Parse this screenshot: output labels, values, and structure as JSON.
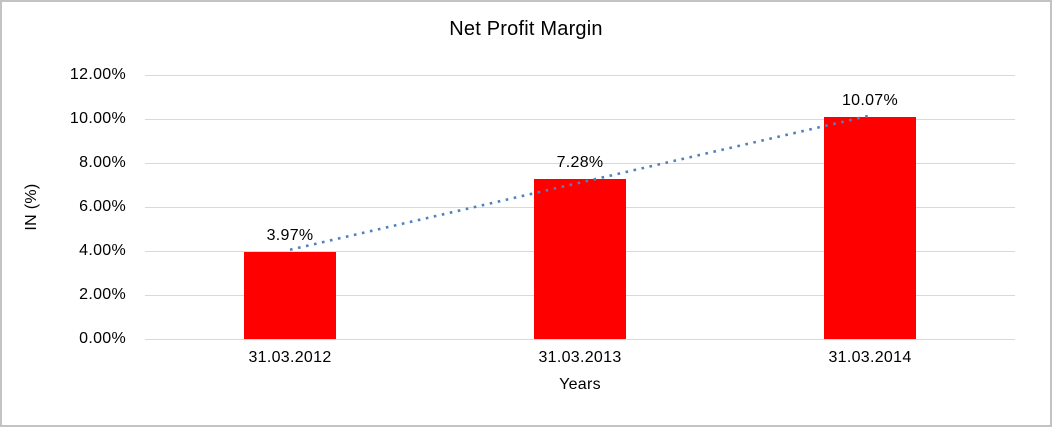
{
  "chart_data": {
    "type": "bar",
    "title": "Net Profit Margin",
    "xlabel": "Years",
    "ylabel": "IN (%)",
    "categories": [
      "31.03.2012",
      "31.03.2013",
      "31.03.2014"
    ],
    "values": [
      3.97,
      7.28,
      10.07
    ],
    "data_labels": [
      "3.97%",
      "7.28%",
      "10.07%"
    ],
    "ylim": [
      0,
      12
    ],
    "ytick_labels": [
      "0.00%",
      "2.00%",
      "4.00%",
      "6.00%",
      "8.00%",
      "10.00%",
      "12.00%"
    ],
    "grid": "horizontal",
    "legend": "none",
    "colors": {
      "bar": "#ff0000",
      "trendline": "#4f81bd",
      "gridline": "#d9d9d9",
      "text": "#000000",
      "background": "#ffffff"
    },
    "trendline": {
      "type": "linear",
      "style": "dotted"
    }
  }
}
